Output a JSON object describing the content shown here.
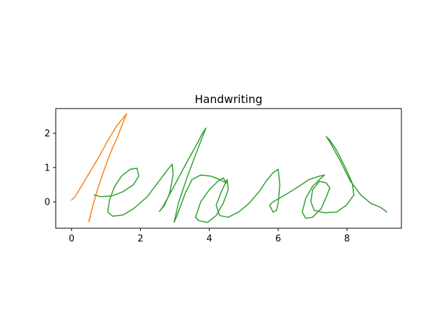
{
  "chart_data": {
    "type": "line",
    "title": "Handwriting",
    "xlabel": "",
    "ylabel": "",
    "xlim": [
      -0.46,
      9.58
    ],
    "ylim": [
      -0.77,
      2.72
    ],
    "x_ticks": [
      0,
      2,
      4,
      6,
      8
    ],
    "y_ticks": [
      0,
      1,
      2
    ],
    "grid": false,
    "legend": "none",
    "series": [
      {
        "color": "#ff7f0e",
        "x": [
          0.0,
          0.1,
          0.3,
          0.55,
          0.8,
          1.05,
          1.3,
          1.48,
          1.6,
          1.55,
          1.42,
          1.32,
          1.2,
          1.05,
          0.9,
          0.75,
          0.62,
          0.55,
          0.5,
          0.55
        ],
        "y": [
          0.05,
          0.15,
          0.48,
          0.9,
          1.32,
          1.78,
          2.2,
          2.42,
          2.57,
          2.45,
          2.12,
          1.85,
          1.6,
          1.22,
          0.8,
          0.35,
          -0.1,
          -0.38,
          -0.58,
          -0.42
        ]
      },
      {
        "color": "#2ca02c",
        "x": [
          0.65,
          0.85,
          1.2,
          1.5,
          1.8,
          1.95,
          1.9,
          1.7,
          1.45,
          1.25,
          1.1,
          1.05,
          1.2,
          1.5,
          1.8,
          2.2,
          2.5,
          2.8,
          2.92,
          2.95,
          2.85,
          2.7,
          2.55,
          2.65,
          3.0,
          3.4,
          3.65,
          3.8,
          3.9,
          3.65,
          3.35,
          3.1,
          2.98,
          3.1,
          3.3,
          3.5,
          3.75,
          4.05,
          4.3,
          4.5,
          4.4,
          4.25,
          4.0,
          3.75,
          3.6,
          3.7,
          3.95,
          4.2,
          4.4,
          4.55,
          4.52,
          4.35,
          4.2,
          4.3,
          4.55,
          4.85,
          5.15,
          5.45,
          5.65,
          5.85,
          6.0,
          6.05,
          6.0,
          5.95,
          5.85,
          5.78,
          5.75,
          5.85,
          6.2,
          6.6,
          6.9,
          7.2,
          7.35,
          7.25,
          7.0,
          6.8,
          6.7,
          6.8,
          7.0,
          7.25,
          7.4,
          7.5,
          7.4,
          7.2,
          7.0,
          6.95,
          7.05,
          7.35,
          7.7,
          7.98,
          8.2,
          8.15,
          7.95,
          7.7,
          7.5,
          7.4,
          7.5,
          7.8,
          8.1,
          8.4,
          8.7,
          8.95,
          9.1,
          9.15
        ],
        "y": [
          0.2,
          0.15,
          0.18,
          0.3,
          0.5,
          0.75,
          0.98,
          0.95,
          0.75,
          0.45,
          0.05,
          -0.3,
          -0.42,
          -0.38,
          -0.2,
          0.15,
          0.55,
          0.95,
          1.1,
          0.8,
          0.25,
          -0.1,
          -0.28,
          -0.15,
          0.5,
          1.25,
          1.7,
          2.0,
          2.15,
          1.5,
          0.7,
          -0.05,
          -0.6,
          -0.3,
          0.25,
          0.65,
          0.78,
          0.75,
          0.65,
          0.55,
          0.7,
          0.6,
          0.35,
          0.0,
          -0.45,
          -0.55,
          -0.6,
          -0.4,
          -0.05,
          0.35,
          0.65,
          0.3,
          -0.1,
          -0.4,
          -0.45,
          -0.3,
          -0.05,
          0.3,
          0.6,
          0.85,
          0.95,
          0.5,
          -0.05,
          -0.25,
          -0.3,
          -0.15,
          -0.1,
          0.0,
          0.2,
          0.45,
          0.65,
          0.75,
          0.78,
          0.7,
          0.45,
          0.1,
          -0.3,
          -0.48,
          -0.45,
          -0.2,
          0.15,
          0.4,
          0.55,
          0.6,
          0.35,
          0.0,
          -0.25,
          -0.32,
          -0.3,
          -0.1,
          0.2,
          0.55,
          1.0,
          1.5,
          1.8,
          1.9,
          1.75,
          1.2,
          0.6,
          0.2,
          -0.05,
          -0.15,
          -0.25,
          -0.3
        ]
      }
    ]
  }
}
